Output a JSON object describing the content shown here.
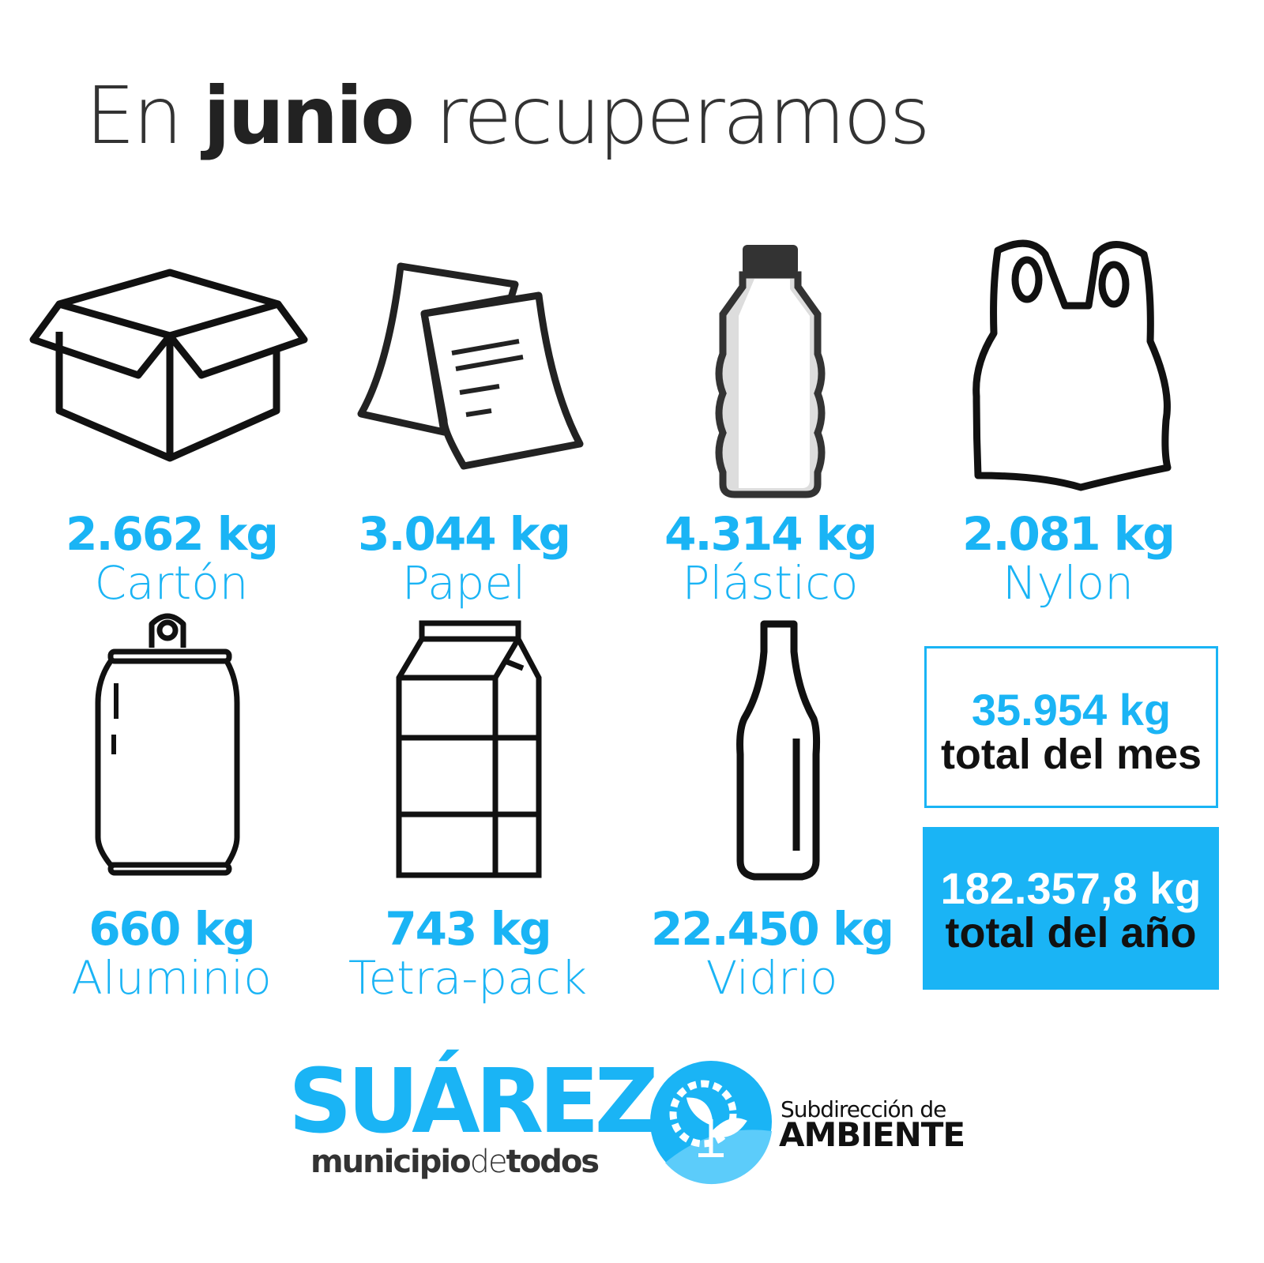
{
  "title": {
    "prefix": "En",
    "month": "junio",
    "suffix": "recuperamos"
  },
  "materials": [
    {
      "qty": "2.662 kg",
      "label": "Cartón",
      "icon": "cardboard-box-icon"
    },
    {
      "qty": "3.044 kg",
      "label": "Papel",
      "icon": "paper-icon"
    },
    {
      "qty": "4.314 kg",
      "label": "Plástico",
      "icon": "plastic-bottle-icon"
    },
    {
      "qty": "2.081 kg",
      "label": "Nylon",
      "icon": "plastic-bag-icon"
    },
    {
      "qty": "660 kg",
      "label": "Aluminio",
      "icon": "can-icon"
    },
    {
      "qty": "743 kg",
      "label": "Tetra-pack",
      "icon": "carton-pack-icon"
    },
    {
      "qty": "22.450 kg",
      "label": "Vidrio",
      "icon": "glass-bottle-icon"
    }
  ],
  "totals": {
    "month": {
      "qty": "35.954 kg",
      "label": "total del mes"
    },
    "year": {
      "qty": "182.357,8 kg",
      "label": "total del año"
    }
  },
  "footer": {
    "brand": "SUÁREZ",
    "tagline_a": "municipio",
    "tagline_b": "de",
    "tagline_c": "todos",
    "dept_sub": "Subdirección de",
    "dept_main": "AMBIENTE"
  },
  "colors": {
    "accent": "#1ab4f5",
    "text": "#333333"
  }
}
